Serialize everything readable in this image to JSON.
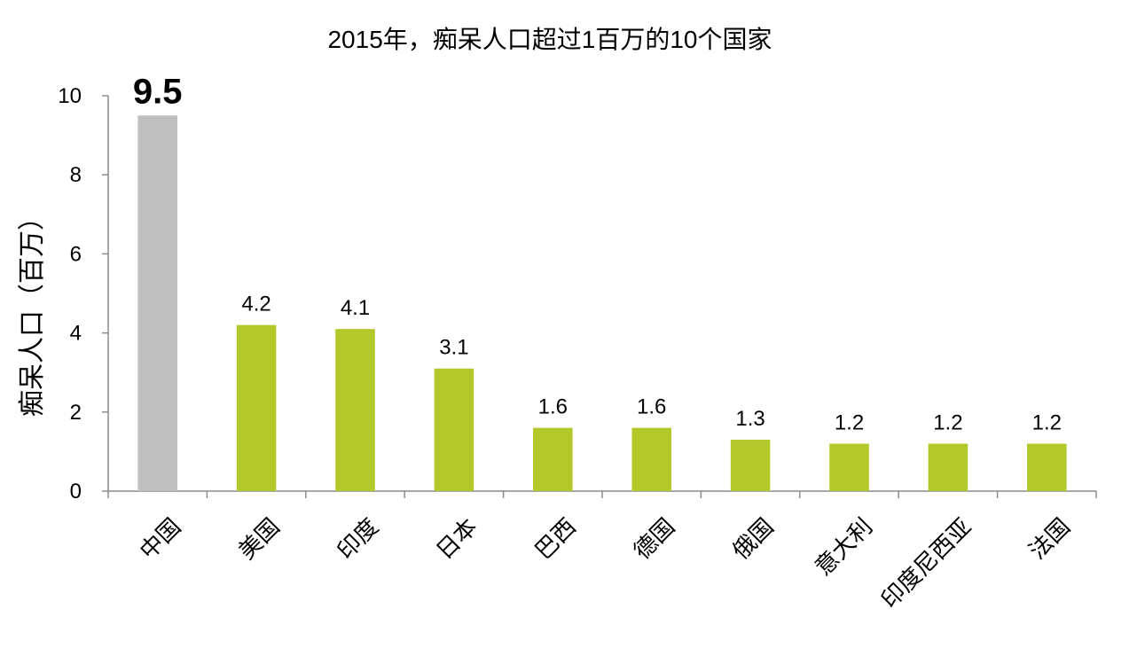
{
  "chart_data": {
    "type": "bar",
    "title": "2015年，痴呆人口超过1百万的10个国家",
    "ylabel": "痴呆人口（百万）",
    "xlabel": "",
    "ylim": [
      0,
      10
    ],
    "yticks": [
      0,
      2,
      4,
      6,
      8,
      10
    ],
    "categories": [
      "中国",
      "美国",
      "印度",
      "日本",
      "巴西",
      "德国",
      "俄国",
      "意大利",
      "印度尼西亚",
      "法国"
    ],
    "values": [
      9.5,
      4.2,
      4.1,
      3.1,
      1.6,
      1.6,
      1.3,
      1.2,
      1.2,
      1.2
    ],
    "data_labels": [
      "9.5",
      "4.2",
      "4.1",
      "3.1",
      "1.6",
      "1.6",
      "1.3",
      "1.2",
      "1.2",
      "1.2"
    ],
    "colors": {
      "highlight": "#bfbfbf",
      "default": "#b3c82a",
      "axis": "#8c8c8c"
    },
    "highlight_index": 0,
    "grid": false,
    "legend": "none"
  }
}
